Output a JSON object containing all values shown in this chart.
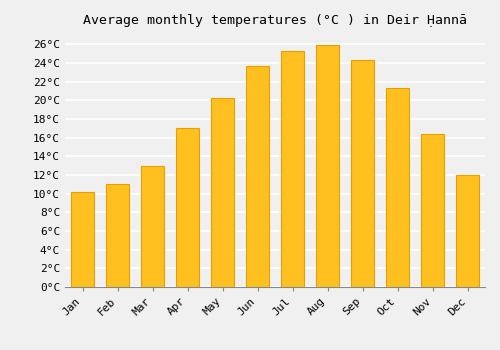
{
  "title": "Average monthly temperatures (°C ) in Deir Ḥannā",
  "months": [
    "Jan",
    "Feb",
    "Mar",
    "Apr",
    "May",
    "Jun",
    "Jul",
    "Aug",
    "Sep",
    "Oct",
    "Nov",
    "Dec"
  ],
  "values": [
    10.2,
    11.0,
    13.0,
    17.0,
    20.3,
    23.7,
    25.3,
    25.9,
    24.3,
    21.3,
    16.4,
    12.0
  ],
  "bar_color": "#FFC020",
  "bar_edge_color": "#E8A000",
  "background_color": "#f0f0f0",
  "grid_color": "#ffffff",
  "ylim": [
    0,
    27
  ],
  "ytick_step": 2,
  "title_fontsize": 9.5,
  "tick_fontsize": 8,
  "font_family": "monospace"
}
